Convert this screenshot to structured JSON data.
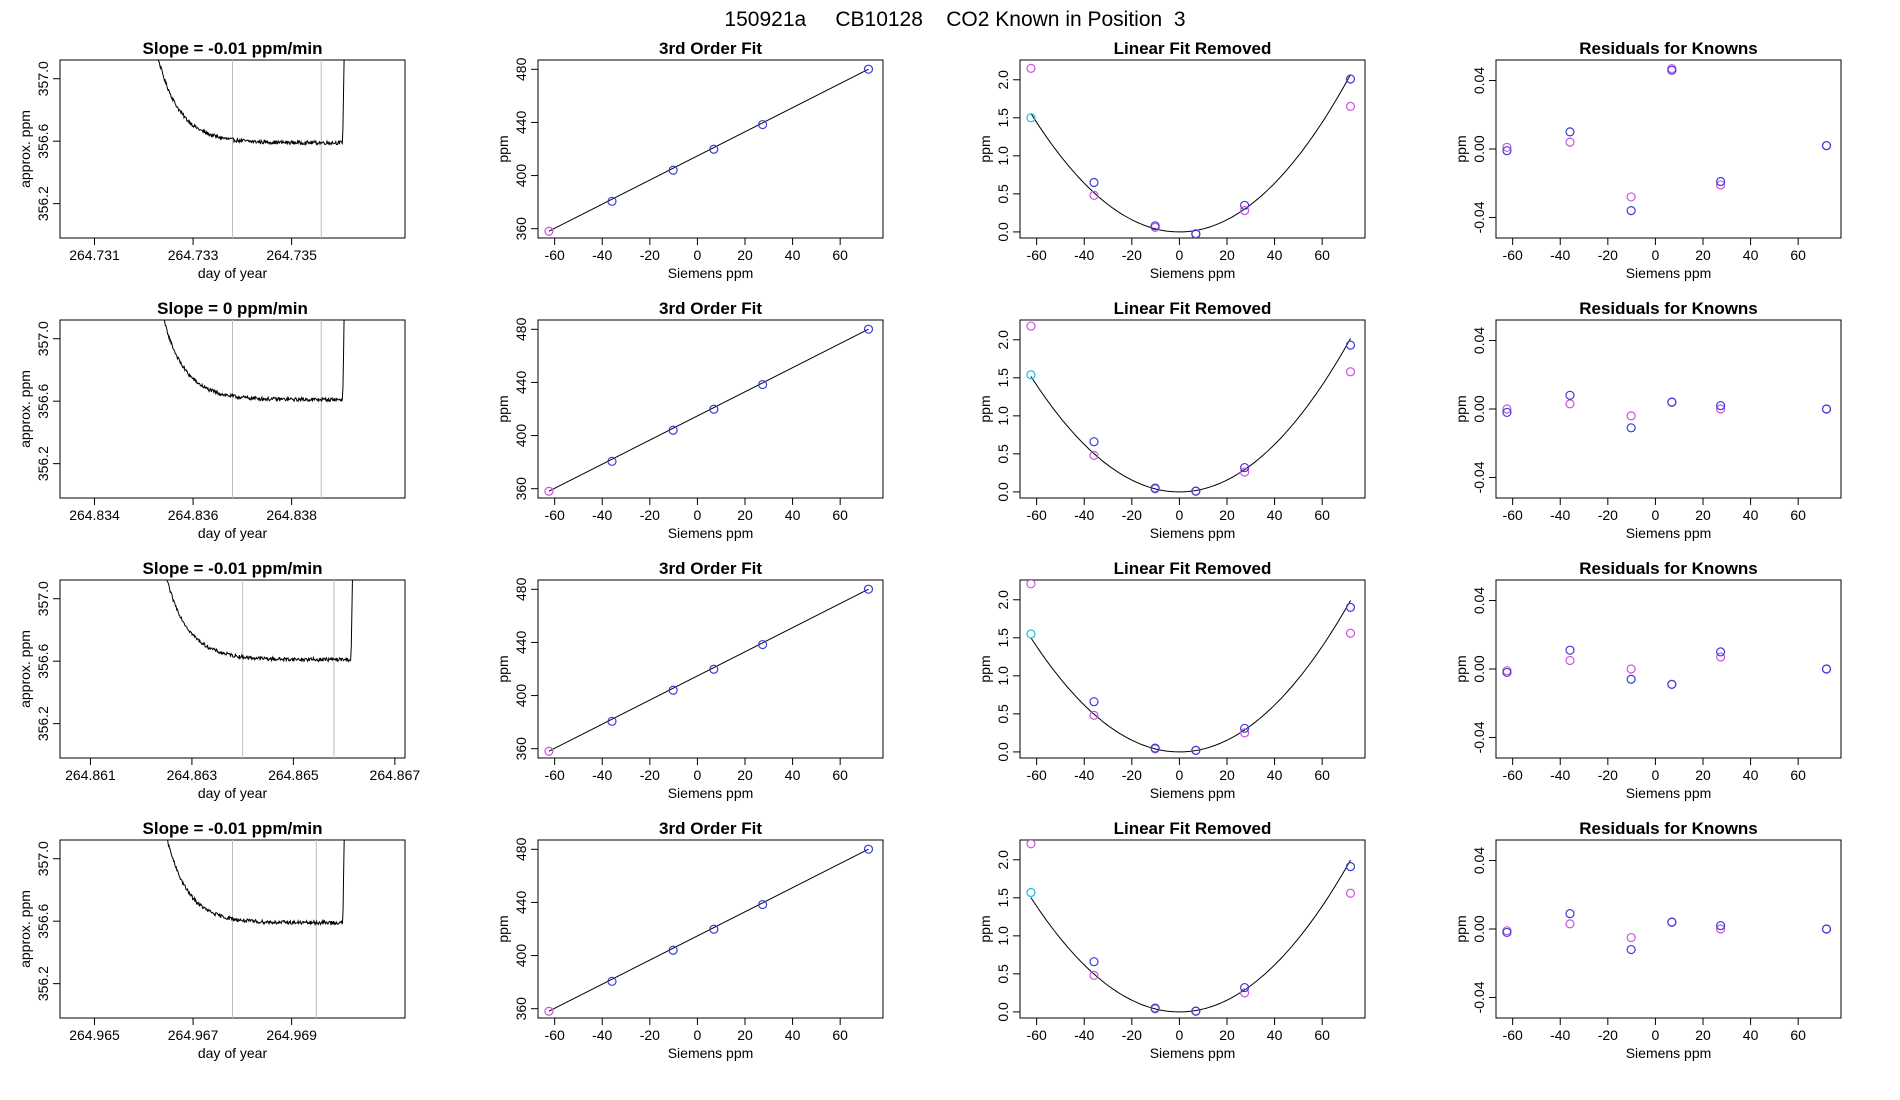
{
  "figure": {
    "title": "150921a     CB10128    CO2 Known in Position  3",
    "colors": {
      "trace": "#000000",
      "grid_line": "#bebebe",
      "pt_blue": "#3b3bd6",
      "pt_magenta": "#cc55dd",
      "pt_cyan": "#22bbdd",
      "fit_line": "#000000"
    }
  },
  "chart_data": [
    {
      "type": "line",
      "row": 0,
      "col": 0,
      "title": "Slope =  -0.01  ppm/min",
      "xlabel": "day of year",
      "ylabel": "approx. ppm",
      "xlim": [
        264.7303,
        264.7373
      ],
      "ylim": [
        355.98,
        357.12
      ],
      "xticks": [
        264.731,
        264.733,
        264.735
      ],
      "xtick_labels": [
        "264.731",
        "264.733",
        "264.735"
      ],
      "yticks": [
        356.2,
        356.6,
        357.0
      ],
      "ytick_labels": [
        "356.2",
        "356.6",
        "357.0"
      ],
      "window": [
        264.7338,
        264.7356
      ],
      "trace": {
        "start": 264.7318,
        "end": 264.7361,
        "plateau": 356.59,
        "noise": 0.012
      }
    },
    {
      "type": "line",
      "row": 1,
      "col": 0,
      "title": "Slope =  0  ppm/min",
      "xlabel": "day of year",
      "ylabel": "approx. ppm",
      "xlim": [
        264.8333,
        264.8403
      ],
      "ylim": [
        355.98,
        357.12
      ],
      "xticks": [
        264.834,
        264.836,
        264.838
      ],
      "xtick_labels": [
        "264.834",
        "264.836",
        "264.838"
      ],
      "yticks": [
        356.2,
        356.6,
        357.0
      ],
      "ytick_labels": [
        "356.2",
        "356.6",
        "357.0"
      ],
      "window": [
        264.8368,
        264.8386
      ],
      "trace": {
        "start": 264.8349,
        "end": 264.8391,
        "plateau": 356.61,
        "noise": 0.012
      }
    },
    {
      "type": "line",
      "row": 2,
      "col": 0,
      "title": "Slope =  -0.01  ppm/min",
      "xlabel": "day of year",
      "ylabel": "approx. ppm",
      "xlim": [
        264.8604,
        264.8672
      ],
      "ylim": [
        355.98,
        357.12
      ],
      "xticks": [
        264.861,
        264.863,
        264.865,
        264.867
      ],
      "xtick_labels": [
        "264.861",
        "264.863",
        "264.865",
        "264.867"
      ],
      "yticks": [
        356.2,
        356.6,
        357.0
      ],
      "ytick_labels": [
        "356.2",
        "356.6",
        "357.0"
      ],
      "window": [
        264.864,
        264.8658
      ],
      "trace": {
        "start": 264.862,
        "end": 264.8662,
        "plateau": 356.61,
        "noise": 0.012
      }
    },
    {
      "type": "line",
      "row": 3,
      "col": 0,
      "title": "Slope =  -0.01  ppm/min",
      "xlabel": "day of year",
      "ylabel": "approx. ppm",
      "xlim": [
        264.9643,
        264.9713
      ],
      "ylim": [
        355.98,
        357.12
      ],
      "xticks": [
        264.965,
        264.967,
        264.969
      ],
      "xtick_labels": [
        "264.965",
        "264.967",
        "264.969"
      ],
      "yticks": [
        356.2,
        356.6,
        357.0
      ],
      "ytick_labels": [
        "356.2",
        "356.6",
        "357.0"
      ],
      "window": [
        264.9678,
        264.9695
      ],
      "trace": {
        "start": 264.966,
        "end": 264.9701,
        "plateau": 356.59,
        "noise": 0.012
      }
    },
    {
      "type": "scatter",
      "row": 0,
      "col": 1,
      "title": "3rd Order Fit",
      "xlabel": "Siemens ppm",
      "ylabel": "ppm",
      "xlim": [
        -67,
        78
      ],
      "ylim": [
        353,
        487
      ],
      "xticks": [
        -60,
        -40,
        -20,
        0,
        20,
        40,
        60
      ],
      "xtick_labels": [
        "-60",
        "-40",
        "-20",
        "0",
        "20",
        "40",
        "60"
      ],
      "yticks": [
        360,
        400,
        440,
        480
      ],
      "ytick_labels": [
        "360",
        "400",
        "440",
        "480"
      ],
      "points_blue": [
        [
          -35.9,
          380.6
        ],
        [
          -10.2,
          404.0
        ],
        [
          6.9,
          419.8
        ],
        [
          27.4,
          438.4
        ],
        [
          71.9,
          480.1
        ]
      ],
      "points_magenta": [
        [
          -62.4,
          358.1
        ]
      ],
      "fit_line": [
        [
          -62.4,
          358.1
        ],
        [
          71.9,
          480.1
        ]
      ]
    },
    {
      "type": "scatter",
      "row": 1,
      "col": 1,
      "title": "3rd Order Fit",
      "xlabel": "Siemens ppm",
      "ylabel": "ppm",
      "xlim": [
        -67,
        78
      ],
      "ylim": [
        353,
        487
      ],
      "xticks": [
        -60,
        -40,
        -20,
        0,
        20,
        40,
        60
      ],
      "xtick_labels": [
        "-60",
        "-40",
        "-20",
        "0",
        "20",
        "40",
        "60"
      ],
      "yticks": [
        360,
        400,
        440,
        480
      ],
      "ytick_labels": [
        "360",
        "400",
        "440",
        "480"
      ],
      "points_blue": [
        [
          -35.9,
          380.6
        ],
        [
          -10.2,
          404.0
        ],
        [
          6.9,
          419.8
        ],
        [
          27.4,
          438.4
        ],
        [
          71.9,
          480.1
        ]
      ],
      "points_magenta": [
        [
          -62.4,
          358.1
        ]
      ],
      "fit_line": [
        [
          -62.4,
          358.1
        ],
        [
          71.9,
          480.1
        ]
      ]
    },
    {
      "type": "scatter",
      "row": 2,
      "col": 1,
      "title": "3rd Order Fit",
      "xlabel": "Siemens ppm",
      "ylabel": "ppm",
      "xlim": [
        -67,
        78
      ],
      "ylim": [
        353,
        487
      ],
      "xticks": [
        -60,
        -40,
        -20,
        0,
        20,
        40,
        60
      ],
      "xtick_labels": [
        "-60",
        "-40",
        "-20",
        "0",
        "20",
        "40",
        "60"
      ],
      "yticks": [
        360,
        400,
        440,
        480
      ],
      "ytick_labels": [
        "360",
        "400",
        "440",
        "480"
      ],
      "points_blue": [
        [
          -35.9,
          380.6
        ],
        [
          -10.2,
          404.0
        ],
        [
          6.9,
          419.8
        ],
        [
          27.4,
          438.4
        ],
        [
          71.9,
          480.1
        ]
      ],
      "points_magenta": [
        [
          -62.4,
          358.1
        ]
      ],
      "fit_line": [
        [
          -62.4,
          358.1
        ],
        [
          71.9,
          480.1
        ]
      ]
    },
    {
      "type": "scatter",
      "row": 3,
      "col": 1,
      "title": "3rd Order Fit",
      "xlabel": "Siemens ppm",
      "ylabel": "ppm",
      "xlim": [
        -67,
        78
      ],
      "ylim": [
        353,
        487
      ],
      "xticks": [
        -60,
        -40,
        -20,
        0,
        20,
        40,
        60
      ],
      "xtick_labels": [
        "-60",
        "-40",
        "-20",
        "0",
        "20",
        "40",
        "60"
      ],
      "yticks": [
        360,
        400,
        440,
        480
      ],
      "ytick_labels": [
        "360",
        "400",
        "440",
        "480"
      ],
      "points_blue": [
        [
          -35.9,
          380.6
        ],
        [
          -10.2,
          404.0
        ],
        [
          6.9,
          419.8
        ],
        [
          27.4,
          438.4
        ],
        [
          71.9,
          480.1
        ]
      ],
      "points_magenta": [
        [
          -62.4,
          358.1
        ]
      ],
      "fit_line": [
        [
          -62.4,
          358.1
        ],
        [
          71.9,
          480.1
        ]
      ]
    },
    {
      "type": "scatter",
      "row": 0,
      "col": 2,
      "title": "Linear Fit Removed",
      "xlabel": "Siemens ppm",
      "ylabel": "ppm",
      "xlim": [
        -67,
        78
      ],
      "ylim": [
        -0.08,
        2.26
      ],
      "xticks": [
        -60,
        -40,
        -20,
        0,
        20,
        40,
        60
      ],
      "xtick_labels": [
        "-60",
        "-40",
        "-20",
        "0",
        "20",
        "40",
        "60"
      ],
      "yticks": [
        0.0,
        0.5,
        1.0,
        1.5,
        2.0
      ],
      "ytick_labels": [
        "0.0",
        "0.5",
        "1.0",
        "1.5",
        "2.0"
      ],
      "points_blue": [
        [
          -35.9,
          0.65
        ],
        [
          -10.2,
          0.08
        ],
        [
          6.9,
          -0.03
        ],
        [
          27.4,
          0.35
        ],
        [
          71.9,
          2.01
        ]
      ],
      "points_magenta": [
        [
          -62.4,
          2.15
        ],
        [
          -35.9,
          0.48
        ],
        [
          -10.2,
          0.06
        ],
        [
          6.9,
          -0.02
        ],
        [
          27.4,
          0.28
        ],
        [
          71.9,
          1.65
        ]
      ],
      "points_cyan": [
        [
          -62.4,
          1.5
        ]
      ],
      "curve": {
        "a": 0.0004,
        "b": 0.0,
        "c": 0.0,
        "xmin": -62.4,
        "xmax": 71.9
      }
    },
    {
      "type": "scatter",
      "row": 1,
      "col": 2,
      "title": "Linear Fit Removed",
      "xlabel": "Siemens ppm",
      "ylabel": "ppm",
      "xlim": [
        -67,
        78
      ],
      "ylim": [
        -0.08,
        2.26
      ],
      "xticks": [
        -60,
        -40,
        -20,
        0,
        20,
        40,
        60
      ],
      "xtick_labels": [
        "-60",
        "-40",
        "-20",
        "0",
        "20",
        "40",
        "60"
      ],
      "yticks": [
        0.0,
        0.5,
        1.0,
        1.5,
        2.0
      ],
      "ytick_labels": [
        "0.0",
        "0.5",
        "1.0",
        "1.5",
        "2.0"
      ],
      "points_blue": [
        [
          -35.9,
          0.66
        ],
        [
          -10.2,
          0.05
        ],
        [
          6.9,
          0.01
        ],
        [
          27.4,
          0.32
        ],
        [
          71.9,
          1.93
        ]
      ],
      "points_magenta": [
        [
          -62.4,
          2.18
        ],
        [
          -35.9,
          0.48
        ],
        [
          -10.2,
          0.04
        ],
        [
          6.9,
          0.01
        ],
        [
          27.4,
          0.26
        ],
        [
          71.9,
          1.58
        ]
      ],
      "points_cyan": [
        [
          -62.4,
          1.54
        ]
      ],
      "curve": {
        "a": 0.00039,
        "b": 0.0,
        "c": 0.0,
        "xmin": -62.4,
        "xmax": 71.9
      }
    },
    {
      "type": "scatter",
      "row": 2,
      "col": 2,
      "title": "Linear Fit Removed",
      "xlabel": "Siemens ppm",
      "ylabel": "ppm",
      "xlim": [
        -67,
        78
      ],
      "ylim": [
        -0.08,
        2.26
      ],
      "xticks": [
        -60,
        -40,
        -20,
        0,
        20,
        40,
        60
      ],
      "xtick_labels": [
        "-60",
        "-40",
        "-20",
        "0",
        "20",
        "40",
        "60"
      ],
      "yticks": [
        0.0,
        0.5,
        1.0,
        1.5,
        2.0
      ],
      "ytick_labels": [
        "0.0",
        "0.5",
        "1.0",
        "1.5",
        "2.0"
      ],
      "points_blue": [
        [
          -35.9,
          0.66
        ],
        [
          -10.2,
          0.05
        ],
        [
          6.9,
          0.02
        ],
        [
          27.4,
          0.31
        ],
        [
          71.9,
          1.9
        ]
      ],
      "points_magenta": [
        [
          -62.4,
          2.21
        ],
        [
          -35.9,
          0.48
        ],
        [
          -10.2,
          0.04
        ],
        [
          6.9,
          0.02
        ],
        [
          27.4,
          0.25
        ],
        [
          71.9,
          1.56
        ]
      ],
      "points_cyan": [
        [
          -62.4,
          1.55
        ]
      ],
      "curve": {
        "a": 0.000385,
        "b": 0.0,
        "c": 0.0,
        "xmin": -62.4,
        "xmax": 71.9
      }
    },
    {
      "type": "scatter",
      "row": 3,
      "col": 2,
      "title": "Linear Fit Removed",
      "xlabel": "Siemens ppm",
      "ylabel": "ppm",
      "xlim": [
        -67,
        78
      ],
      "ylim": [
        -0.08,
        2.26
      ],
      "xticks": [
        -60,
        -40,
        -20,
        0,
        20,
        40,
        60
      ],
      "xtick_labels": [
        "-60",
        "-40",
        "-20",
        "0",
        "20",
        "40",
        "60"
      ],
      "yticks": [
        0.0,
        0.5,
        1.0,
        1.5,
        2.0
      ],
      "ytick_labels": [
        "0.0",
        "0.5",
        "1.0",
        "1.5",
        "2.0"
      ],
      "points_blue": [
        [
          -35.9,
          0.66
        ],
        [
          -10.2,
          0.05
        ],
        [
          6.9,
          0.01
        ],
        [
          27.4,
          0.32
        ],
        [
          71.9,
          1.91
        ]
      ],
      "points_magenta": [
        [
          -62.4,
          2.21
        ],
        [
          -35.9,
          0.48
        ],
        [
          -10.2,
          0.04
        ],
        [
          6.9,
          0.01
        ],
        [
          27.4,
          0.25
        ],
        [
          71.9,
          1.56
        ]
      ],
      "points_cyan": [
        [
          -62.4,
          1.57
        ]
      ],
      "curve": {
        "a": 0.000386,
        "b": 0.0,
        "c": 0.0,
        "xmin": -62.4,
        "xmax": 71.9
      }
    },
    {
      "type": "scatter",
      "row": 0,
      "col": 3,
      "title": "Residuals for Knowns",
      "xlabel": "Siemens ppm",
      "ylabel": "ppm",
      "xlim": [
        -67,
        78
      ],
      "ylim": [
        -0.052,
        0.052
      ],
      "xticks": [
        -60,
        -40,
        -20,
        0,
        20,
        40,
        60
      ],
      "xtick_labels": [
        "-60",
        "-40",
        "-20",
        "0",
        "20",
        "40",
        "60"
      ],
      "yticks": [
        -0.04,
        0.0,
        0.04
      ],
      "ytick_labels": [
        "-0.04",
        "0.00",
        "0.04"
      ],
      "points_blue": [
        [
          -62.4,
          -0.001
        ],
        [
          -35.9,
          0.01
        ],
        [
          -10.2,
          -0.036
        ],
        [
          6.9,
          0.046
        ],
        [
          27.4,
          -0.019
        ],
        [
          71.9,
          0.002
        ]
      ],
      "points_magenta": [
        [
          -62.4,
          0.001
        ],
        [
          -35.9,
          0.004
        ],
        [
          -10.2,
          -0.028
        ],
        [
          6.9,
          0.047
        ],
        [
          27.4,
          -0.021
        ],
        [
          71.9,
          0.002
        ]
      ]
    },
    {
      "type": "scatter",
      "row": 1,
      "col": 3,
      "title": "Residuals for Knowns",
      "xlabel": "Siemens ppm",
      "ylabel": "ppm",
      "xlim": [
        -67,
        78
      ],
      "ylim": [
        -0.052,
        0.052
      ],
      "xticks": [
        -60,
        -40,
        -20,
        0,
        20,
        40,
        60
      ],
      "xtick_labels": [
        "-60",
        "-40",
        "-20",
        "0",
        "20",
        "40",
        "60"
      ],
      "yticks": [
        -0.04,
        0.0,
        0.04
      ],
      "ytick_labels": [
        "-0.04",
        "0.00",
        "0.04"
      ],
      "points_blue": [
        [
          -62.4,
          -0.002
        ],
        [
          -35.9,
          0.008
        ],
        [
          -10.2,
          -0.011
        ],
        [
          6.9,
          0.004
        ],
        [
          27.4,
          0.002
        ],
        [
          71.9,
          0.0
        ]
      ],
      "points_magenta": [
        [
          -62.4,
          0.0
        ],
        [
          -35.9,
          0.003
        ],
        [
          -10.2,
          -0.004
        ],
        [
          6.9,
          0.004
        ],
        [
          27.4,
          0.0
        ],
        [
          71.9,
          0.0
        ]
      ]
    },
    {
      "type": "scatter",
      "row": 2,
      "col": 3,
      "title": "Residuals for Knowns",
      "xlabel": "Siemens ppm",
      "ylabel": "ppm",
      "xlim": [
        -67,
        78
      ],
      "ylim": [
        -0.052,
        0.052
      ],
      "xticks": [
        -60,
        -40,
        -20,
        0,
        20,
        40,
        60
      ],
      "xtick_labels": [
        "-60",
        "-40",
        "-20",
        "0",
        "20",
        "40",
        "60"
      ],
      "yticks": [
        -0.04,
        0.0,
        0.04
      ],
      "ytick_labels": [
        "-0.04",
        "0.00",
        "0.04"
      ],
      "points_blue": [
        [
          -62.4,
          -0.002
        ],
        [
          -35.9,
          0.011
        ],
        [
          -10.2,
          -0.006
        ],
        [
          6.9,
          -0.009
        ],
        [
          27.4,
          0.01
        ],
        [
          71.9,
          0.0
        ]
      ],
      "points_magenta": [
        [
          -62.4,
          -0.001
        ],
        [
          -35.9,
          0.005
        ],
        [
          -10.2,
          0.0
        ],
        [
          6.9,
          -0.009
        ],
        [
          27.4,
          0.007
        ],
        [
          71.9,
          0.0
        ]
      ]
    },
    {
      "type": "scatter",
      "row": 3,
      "col": 3,
      "title": "Residuals for Knowns",
      "xlabel": "Siemens ppm",
      "ylabel": "ppm",
      "xlim": [
        -67,
        78
      ],
      "ylim": [
        -0.052,
        0.052
      ],
      "xticks": [
        -60,
        -40,
        -20,
        0,
        20,
        40,
        60
      ],
      "xtick_labels": [
        "-60",
        "-40",
        "-20",
        "0",
        "20",
        "40",
        "60"
      ],
      "yticks": [
        -0.04,
        0.0,
        0.04
      ],
      "ytick_labels": [
        "-0.04",
        "0.00",
        "0.04"
      ],
      "points_blue": [
        [
          -62.4,
          -0.002
        ],
        [
          -35.9,
          0.009
        ],
        [
          -10.2,
          -0.012
        ],
        [
          6.9,
          0.004
        ],
        [
          27.4,
          0.002
        ],
        [
          71.9,
          0.0
        ]
      ],
      "points_magenta": [
        [
          -62.4,
          -0.001
        ],
        [
          -35.9,
          0.003
        ],
        [
          -10.2,
          -0.005
        ],
        [
          6.9,
          0.004
        ],
        [
          27.4,
          0.0
        ],
        [
          71.9,
          0.0
        ]
      ]
    }
  ]
}
